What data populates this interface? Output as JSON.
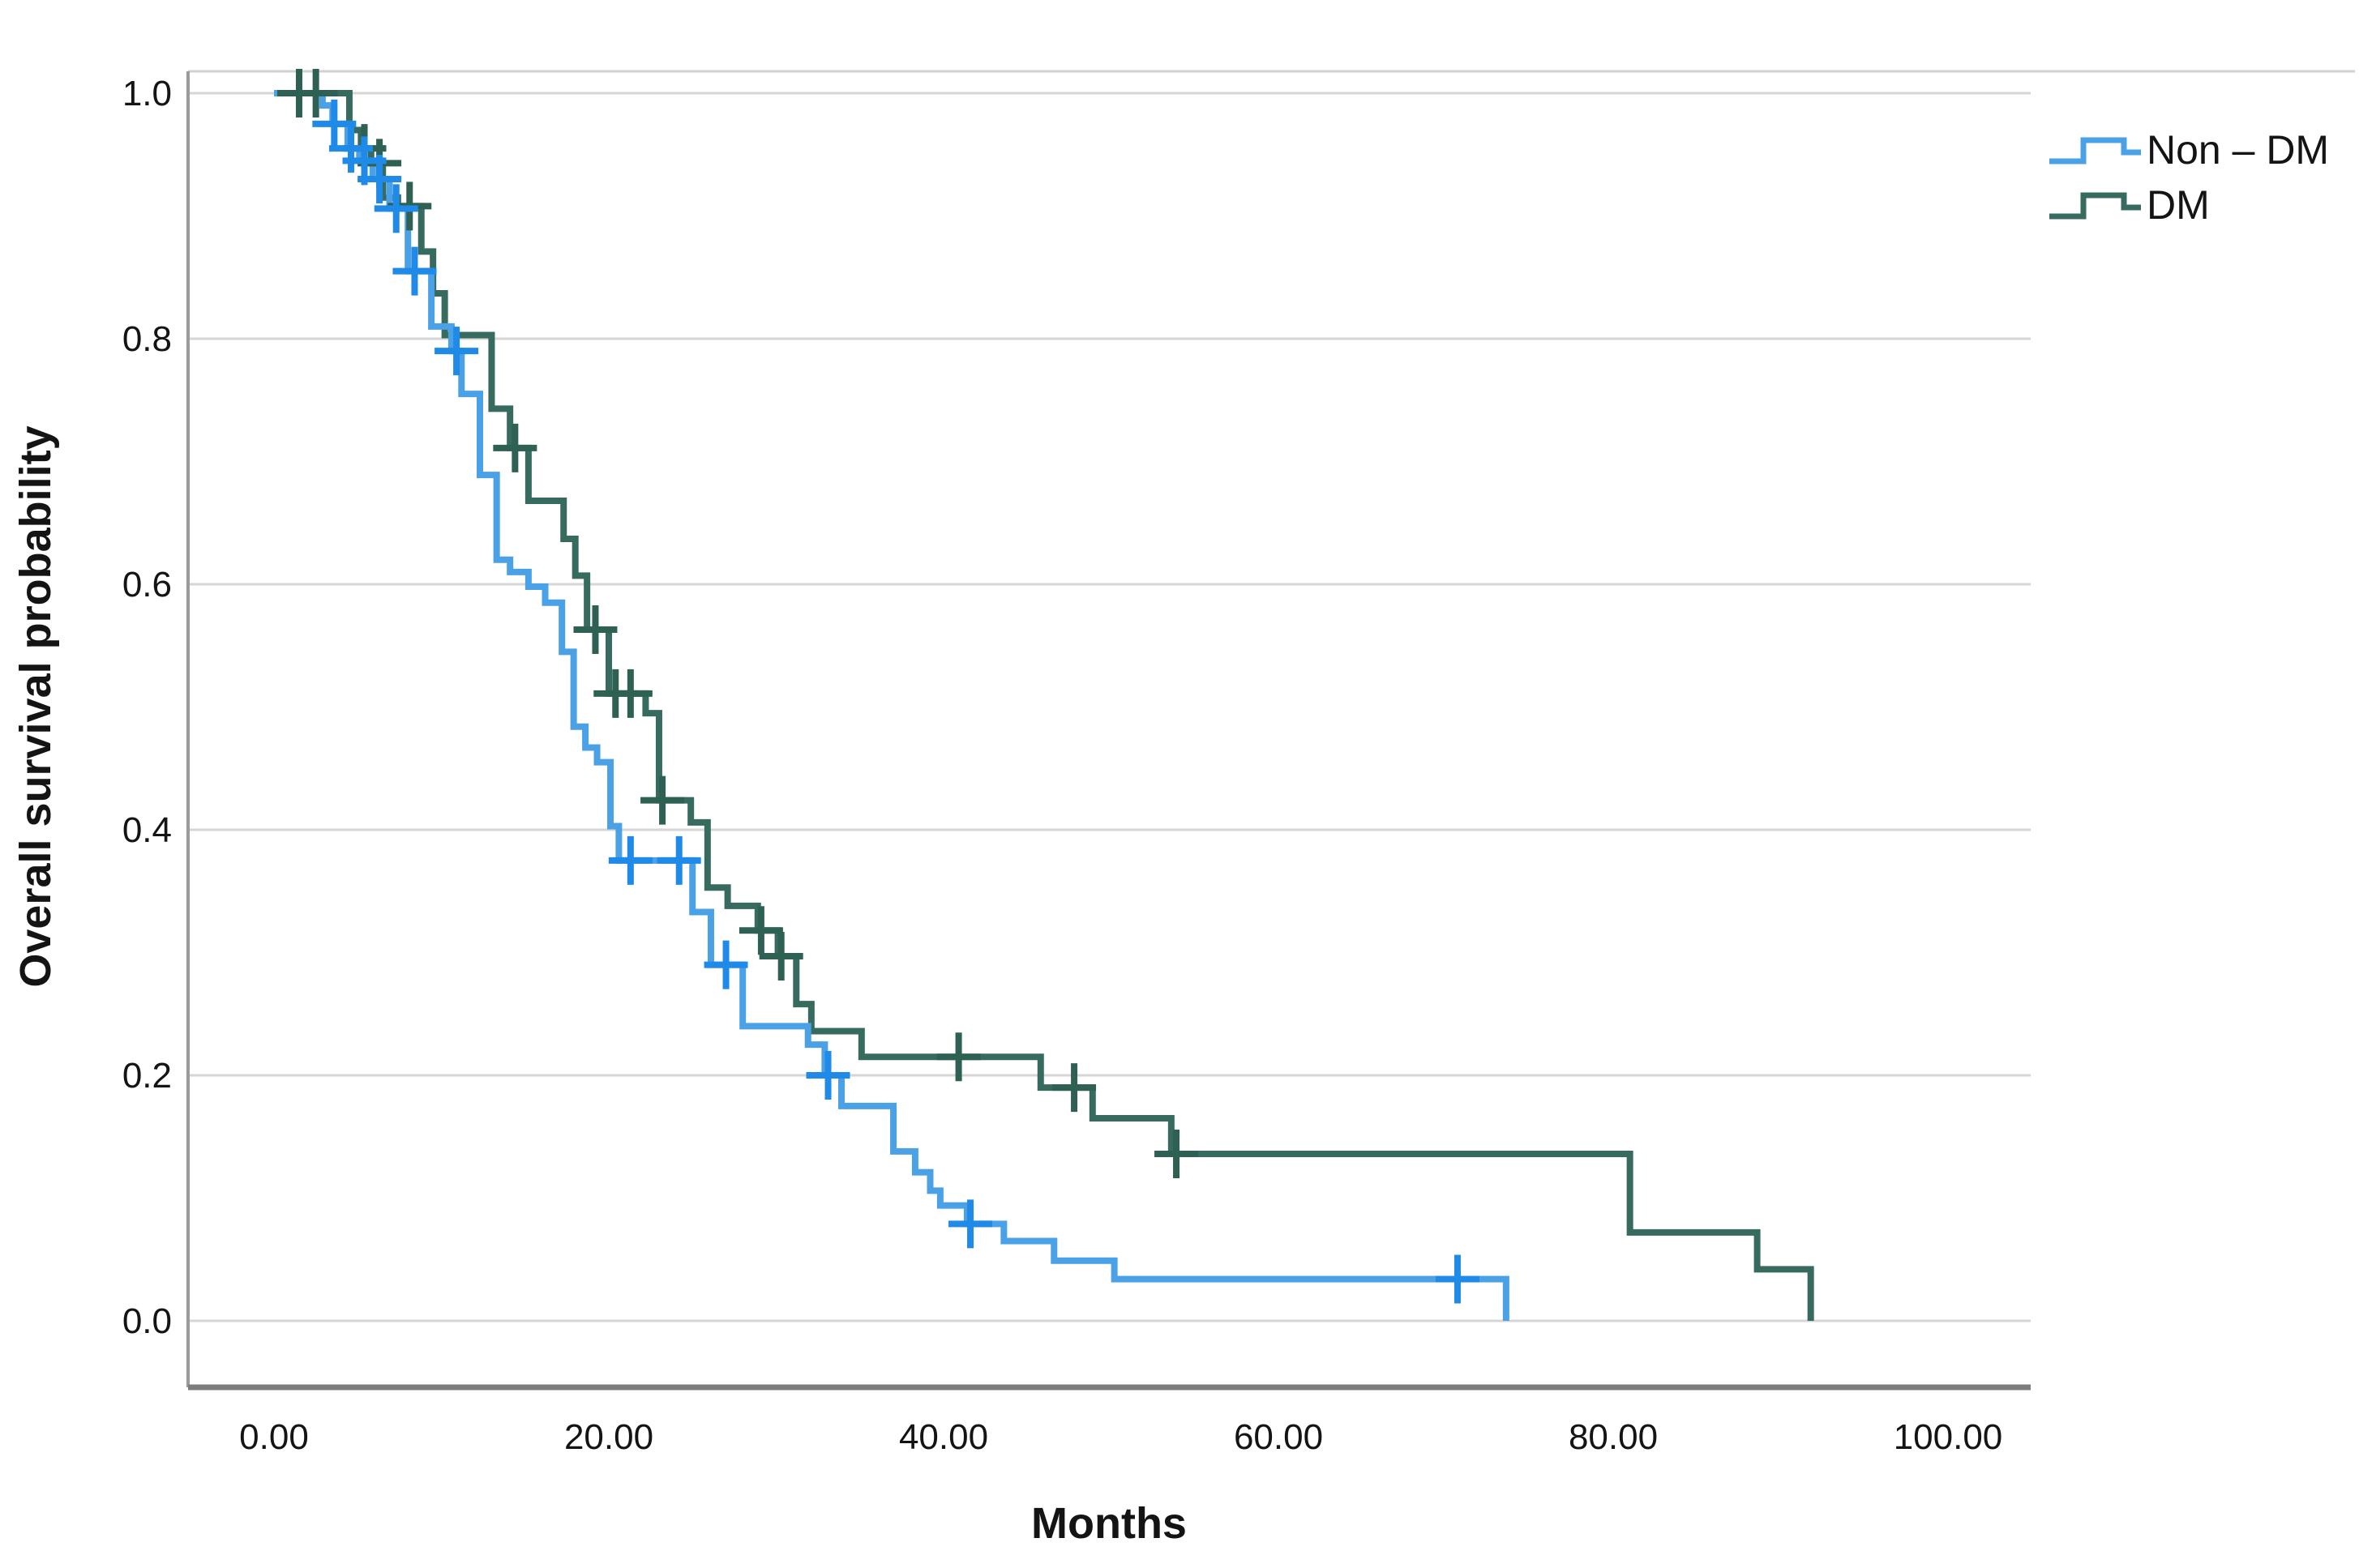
{
  "figure": {
    "type_note": "Kaplan-Meier overall survival plot comparing Non-DM vs DM patients"
  },
  "chart_data": {
    "type": "line",
    "subtype": "kaplan-meier-step",
    "title": "",
    "xlabel": "Months",
    "ylabel": "Overall survival probability",
    "xlim": [
      0,
      105
    ],
    "ylim": [
      0.0,
      1.0
    ],
    "x_tick_labels": [
      "0.00",
      "20.00",
      "40.00",
      "60.00",
      "80.00",
      "100.00"
    ],
    "x_tick_values": [
      0,
      20,
      40,
      60,
      80,
      100
    ],
    "y_tick_labels": [
      "0.0",
      "0.2",
      "0.4",
      "0.6",
      "0.8",
      "1.0"
    ],
    "y_tick_values": [
      0.0,
      0.2,
      0.4,
      0.6,
      0.8,
      1.0
    ],
    "grid": "horizontal",
    "grid_color": "#d6d6d6",
    "axis_color": "#7d7d7d",
    "text_color": "#141414",
    "legend_position": "top-right",
    "series": [
      {
        "name": "DM",
        "color": "#376b5f",
        "censor_color": "#2e6054",
        "steps": [
          [
            0,
            1.0
          ],
          [
            4.5,
            0.97
          ],
          [
            5.2,
            0.955
          ],
          [
            5.8,
            0.943
          ],
          [
            6.5,
            0.915
          ],
          [
            7.4,
            0.908
          ],
          [
            8.8,
            0.871
          ],
          [
            9.5,
            0.837
          ],
          [
            10.2,
            0.803
          ],
          [
            13.0,
            0.743
          ],
          [
            14.1,
            0.711
          ],
          [
            15.2,
            0.668
          ],
          [
            17.3,
            0.637
          ],
          [
            18.0,
            0.607
          ],
          [
            18.7,
            0.563
          ],
          [
            20.0,
            0.511
          ],
          [
            22.2,
            0.495
          ],
          [
            23.0,
            0.424
          ],
          [
            24.9,
            0.406
          ],
          [
            25.9,
            0.353
          ],
          [
            27.1,
            0.338
          ],
          [
            28.9,
            0.318
          ],
          [
            30.1,
            0.297
          ],
          [
            31.2,
            0.258
          ],
          [
            32.1,
            0.236
          ],
          [
            35.1,
            0.215
          ],
          [
            45.8,
            0.19
          ],
          [
            48.9,
            0.165
          ],
          [
            53.6,
            0.136
          ],
          [
            81.0,
            0.072
          ],
          [
            88.6,
            0.042
          ],
          [
            91.8,
            0.0
          ]
        ],
        "censors": [
          [
            1.5,
            1.0
          ],
          [
            2.5,
            1.0
          ],
          [
            5.4,
            0.955
          ],
          [
            6.3,
            0.943
          ],
          [
            8.1,
            0.908
          ],
          [
            14.4,
            0.711
          ],
          [
            19.2,
            0.563
          ],
          [
            20.4,
            0.511
          ],
          [
            21.3,
            0.511
          ],
          [
            23.2,
            0.424
          ],
          [
            29.1,
            0.318
          ],
          [
            30.3,
            0.297
          ],
          [
            40.9,
            0.215
          ],
          [
            47.8,
            0.19
          ],
          [
            53.9,
            0.136
          ]
        ]
      },
      {
        "name": "Non – DM",
        "color": "#4aa1e6",
        "censor_color": "#1f8ae8",
        "steps": [
          [
            0,
            1.0
          ],
          [
            2.9,
            0.99
          ],
          [
            3.5,
            0.975
          ],
          [
            4.4,
            0.955
          ],
          [
            5.1,
            0.945
          ],
          [
            5.9,
            0.93
          ],
          [
            6.9,
            0.906
          ],
          [
            8.0,
            0.855
          ],
          [
            9.4,
            0.81
          ],
          [
            10.6,
            0.79
          ],
          [
            11.2,
            0.755
          ],
          [
            12.3,
            0.689
          ],
          [
            13.3,
            0.62
          ],
          [
            14.1,
            0.61
          ],
          [
            15.2,
            0.598
          ],
          [
            16.2,
            0.585
          ],
          [
            17.2,
            0.545
          ],
          [
            17.9,
            0.484
          ],
          [
            18.6,
            0.467
          ],
          [
            19.3,
            0.455
          ],
          [
            20.1,
            0.403
          ],
          [
            20.6,
            0.375
          ],
          [
            25.0,
            0.333
          ],
          [
            26.1,
            0.29
          ],
          [
            28.0,
            0.24
          ],
          [
            31.9,
            0.225
          ],
          [
            32.9,
            0.2
          ],
          [
            33.9,
            0.175
          ],
          [
            37.0,
            0.138
          ],
          [
            38.3,
            0.121
          ],
          [
            39.2,
            0.106
          ],
          [
            39.8,
            0.094
          ],
          [
            41.4,
            0.079
          ],
          [
            43.6,
            0.065
          ],
          [
            46.6,
            0.049
          ],
          [
            50.2,
            0.034
          ],
          [
            73.6,
            0.0
          ]
        ],
        "censors": [
          [
            3.6,
            0.975
          ],
          [
            4.6,
            0.955
          ],
          [
            5.4,
            0.945
          ],
          [
            6.3,
            0.93
          ],
          [
            7.3,
            0.906
          ],
          [
            8.4,
            0.855
          ],
          [
            10.9,
            0.79
          ],
          [
            21.3,
            0.375
          ],
          [
            24.2,
            0.375
          ],
          [
            27.0,
            0.29
          ],
          [
            33.1,
            0.2
          ],
          [
            41.6,
            0.079
          ],
          [
            70.7,
            0.034
          ]
        ]
      }
    ],
    "legend": [
      {
        "label": "Non – DM",
        "color": "#4aa1e6"
      },
      {
        "label": "DM",
        "color": "#376b5f"
      }
    ]
  }
}
